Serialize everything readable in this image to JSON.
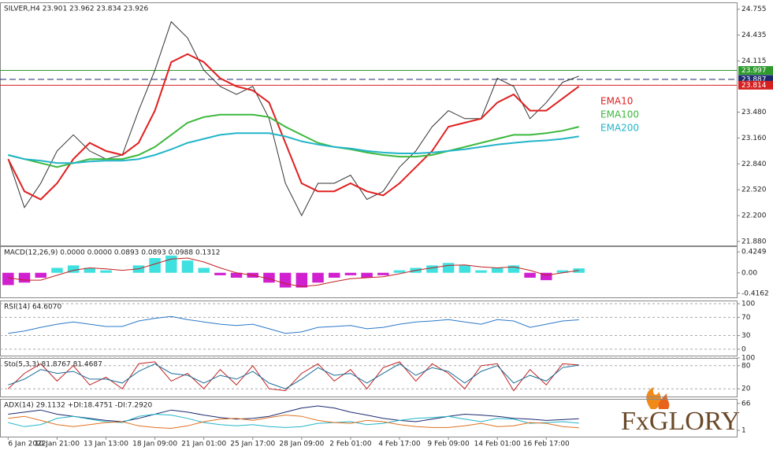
{
  "logo": "FxGLORY",
  "chart_data": [
    {
      "type": "line",
      "title": "SILVER,H4 23.901 23.962 23.834 23.926",
      "ylim": [
        21.83,
        24.84
      ],
      "yticks": [
        24.755,
        24.435,
        24.115,
        {
          "value": 23.48,
          "label": "23.480"
        },
        {
          "value": 23.16,
          "label": "23.160"
        },
        {
          "value": 22.84,
          "label": "22.840"
        },
        {
          "value": 22.52,
          "label": "22.520"
        },
        {
          "value": 22.2,
          "label": "22.200"
        },
        {
          "value": 21.88,
          "label": "21.880"
        }
      ],
      "legend": "right",
      "levels": [
        {
          "value": 23.997,
          "color": "#2e9a2e",
          "dash": false
        },
        {
          "value": 23.887,
          "color": "#1c2a6e",
          "dash": true
        },
        {
          "value": 23.814,
          "color": "#d42020",
          "dash": false
        }
      ],
      "series": [
        {
          "color": "#333333",
          "values": [
            22.9,
            22.3,
            22.6,
            23.0,
            23.2,
            23.0,
            22.9,
            22.95,
            23.5,
            24.0,
            24.6,
            24.4,
            24.0,
            23.8,
            23.7,
            23.8,
            23.4,
            22.6,
            22.2,
            22.6,
            22.6,
            22.7,
            22.4,
            22.5,
            22.8,
            23.0,
            23.3,
            23.5,
            23.4,
            23.4,
            23.9,
            23.8,
            23.4,
            23.6,
            23.85,
            23.926
          ]
        },
        {
          "name": "EMA10",
          "color": "#e02020",
          "values": [
            22.9,
            22.5,
            22.4,
            22.6,
            22.9,
            23.1,
            23.0,
            22.95,
            23.1,
            23.5,
            24.1,
            24.2,
            24.1,
            23.9,
            23.8,
            23.75,
            23.6,
            23.1,
            22.6,
            22.5,
            22.5,
            22.6,
            22.5,
            22.45,
            22.6,
            22.8,
            23.0,
            23.3,
            23.35,
            23.4,
            23.6,
            23.7,
            23.5,
            23.5,
            23.65,
            23.8
          ]
        },
        {
          "name": "EMA100",
          "color": "#3cb83c",
          "values": [
            22.95,
            22.9,
            22.85,
            22.8,
            22.85,
            22.9,
            22.9,
            22.9,
            22.95,
            23.05,
            23.2,
            23.35,
            23.42,
            23.45,
            23.45,
            23.45,
            23.42,
            23.3,
            23.2,
            23.1,
            23.05,
            23.02,
            22.98,
            22.95,
            22.93,
            22.93,
            22.95,
            23.0,
            23.05,
            23.1,
            23.15,
            23.2,
            23.2,
            23.22,
            23.25,
            23.3
          ]
        },
        {
          "name": "EMA200",
          "color": "#22b5c8",
          "values": [
            22.95,
            22.9,
            22.88,
            22.85,
            22.85,
            22.87,
            22.88,
            22.88,
            22.9,
            22.95,
            23.02,
            23.1,
            23.15,
            23.2,
            23.22,
            23.22,
            23.22,
            23.18,
            23.12,
            23.08,
            23.05,
            23.03,
            23.0,
            22.98,
            22.97,
            22.97,
            22.98,
            23.0,
            23.02,
            23.05,
            23.08,
            23.1,
            23.12,
            23.13,
            23.15,
            23.18
          ]
        }
      ]
    },
    {
      "type": "bar",
      "title": "MACD(12,26,9) 0.0000 0.0000 0.0893 0.0893 0.0988 0.1312",
      "ylim": [
        -0.5,
        0.54
      ],
      "yticks": [
        0.4249,
        {
          "value": 0,
          "label": "0.00"
        },
        -0.4162
      ],
      "series": [
        {
          "type": "bar",
          "color": "#3ee0e0",
          "negative_color": "#d020d0",
          "values": [
            -0.25,
            -0.2,
            -0.1,
            0.1,
            0.15,
            0.1,
            0.05,
            0.0,
            0.15,
            0.3,
            0.35,
            0.25,
            0.1,
            -0.05,
            -0.1,
            -0.1,
            -0.2,
            -0.3,
            -0.3,
            -0.2,
            -0.1,
            -0.05,
            -0.1,
            -0.05,
            0.05,
            0.1,
            0.15,
            0.2,
            0.15,
            0.05,
            0.1,
            0.15,
            -0.1,
            -0.15,
            0.05,
            0.09
          ]
        },
        {
          "type": "line",
          "color": "#c02020",
          "values": [
            -0.1,
            -0.15,
            -0.15,
            -0.05,
            0.05,
            0.1,
            0.08,
            0.05,
            0.08,
            0.18,
            0.28,
            0.3,
            0.22,
            0.1,
            0.0,
            -0.05,
            -0.12,
            -0.22,
            -0.28,
            -0.25,
            -0.18,
            -0.12,
            -0.1,
            -0.08,
            -0.02,
            0.05,
            0.1,
            0.15,
            0.16,
            0.12,
            0.1,
            0.12,
            0.05,
            -0.05,
            0.0,
            0.05
          ]
        }
      ]
    },
    {
      "type": "line",
      "title": "RSI(14) 64.6070",
      "ylim": [
        -14,
        107
      ],
      "yticks": [
        100,
        70,
        30,
        0
      ],
      "grid": true,
      "series": [
        {
          "color": "#2a78c8",
          "values": [
            35,
            40,
            48,
            55,
            60,
            55,
            50,
            50,
            62,
            68,
            72,
            65,
            60,
            55,
            52,
            55,
            45,
            35,
            38,
            48,
            50,
            52,
            45,
            48,
            55,
            60,
            62,
            65,
            60,
            55,
            65,
            62,
            48,
            55,
            62,
            64.607
          ]
        }
      ]
    },
    {
      "type": "line",
      "title": "Sto(5,3,3) 81.8767 81.4687",
      "ylim": [
        0,
        100
      ],
      "yticks": [
        100,
        80,
        20
      ],
      "grid": true,
      "series": [
        {
          "color": "#c02020",
          "values": [
            20,
            60,
            85,
            40,
            80,
            30,
            50,
            20,
            85,
            90,
            40,
            60,
            20,
            70,
            30,
            80,
            20,
            15,
            60,
            85,
            40,
            70,
            20,
            75,
            90,
            40,
            85,
            60,
            20,
            80,
            85,
            15,
            70,
            30,
            85,
            81.8767
          ]
        },
        {
          "color": "#1a6e9a",
          "values": [
            30,
            45,
            70,
            60,
            65,
            45,
            45,
            35,
            65,
            85,
            60,
            55,
            35,
            55,
            45,
            65,
            35,
            20,
            45,
            75,
            55,
            60,
            35,
            60,
            85,
            55,
            75,
            65,
            35,
            65,
            80,
            35,
            55,
            40,
            75,
            81.4687
          ]
        }
      ]
    },
    {
      "type": "line",
      "title": "ADX(14) 29.1132 +DI:18.4751 -DI:7.2920",
      "ylim": [
        -14,
        77
      ],
      "yticks": [
        66,
        1
      ],
      "categories": [
        "6 Jan 2022",
        null,
        null,
        "10 Jan 21:00",
        null,
        null,
        "13 Jan 13:00",
        null,
        null,
        "18 Jan 09:00",
        null,
        null,
        "21 Jan 01:00",
        null,
        null,
        "25 Jan 17:00",
        null,
        null,
        "28 Jan 09:00",
        null,
        null,
        "2 Feb 01:00",
        null,
        null,
        "4 Feb 17:00",
        null,
        null,
        "9 Feb 09:00",
        null,
        null,
        "14 Feb 01:00",
        null,
        null,
        "16 Feb 17:00",
        null,
        null
      ],
      "series": [
        {
          "color": "#1c2a6e",
          "values": [
            40,
            45,
            50,
            40,
            35,
            30,
            25,
            22,
            30,
            40,
            50,
            45,
            38,
            32,
            28,
            30,
            35,
            45,
            55,
            60,
            55,
            45,
            38,
            30,
            25,
            22,
            28,
            35,
            40,
            38,
            35,
            30,
            28,
            25,
            27,
            29.1132
          ]
        },
        {
          "color": "#22b5c8",
          "values": [
            20,
            10,
            15,
            30,
            35,
            28,
            22,
            20,
            35,
            40,
            38,
            30,
            20,
            15,
            12,
            15,
            10,
            8,
            10,
            18,
            20,
            22,
            15,
            18,
            25,
            30,
            32,
            35,
            28,
            22,
            30,
            28,
            18,
            20,
            22,
            18.4751
          ]
        },
        {
          "color": "#e07020",
          "values": [
            30,
            35,
            25,
            15,
            10,
            15,
            20,
            22,
            12,
            8,
            6,
            12,
            22,
            28,
            30,
            25,
            32,
            38,
            35,
            25,
            20,
            18,
            25,
            22,
            15,
            10,
            8,
            8,
            12,
            18,
            10,
            12,
            20,
            18,
            10,
            7.292
          ]
        }
      ]
    }
  ]
}
